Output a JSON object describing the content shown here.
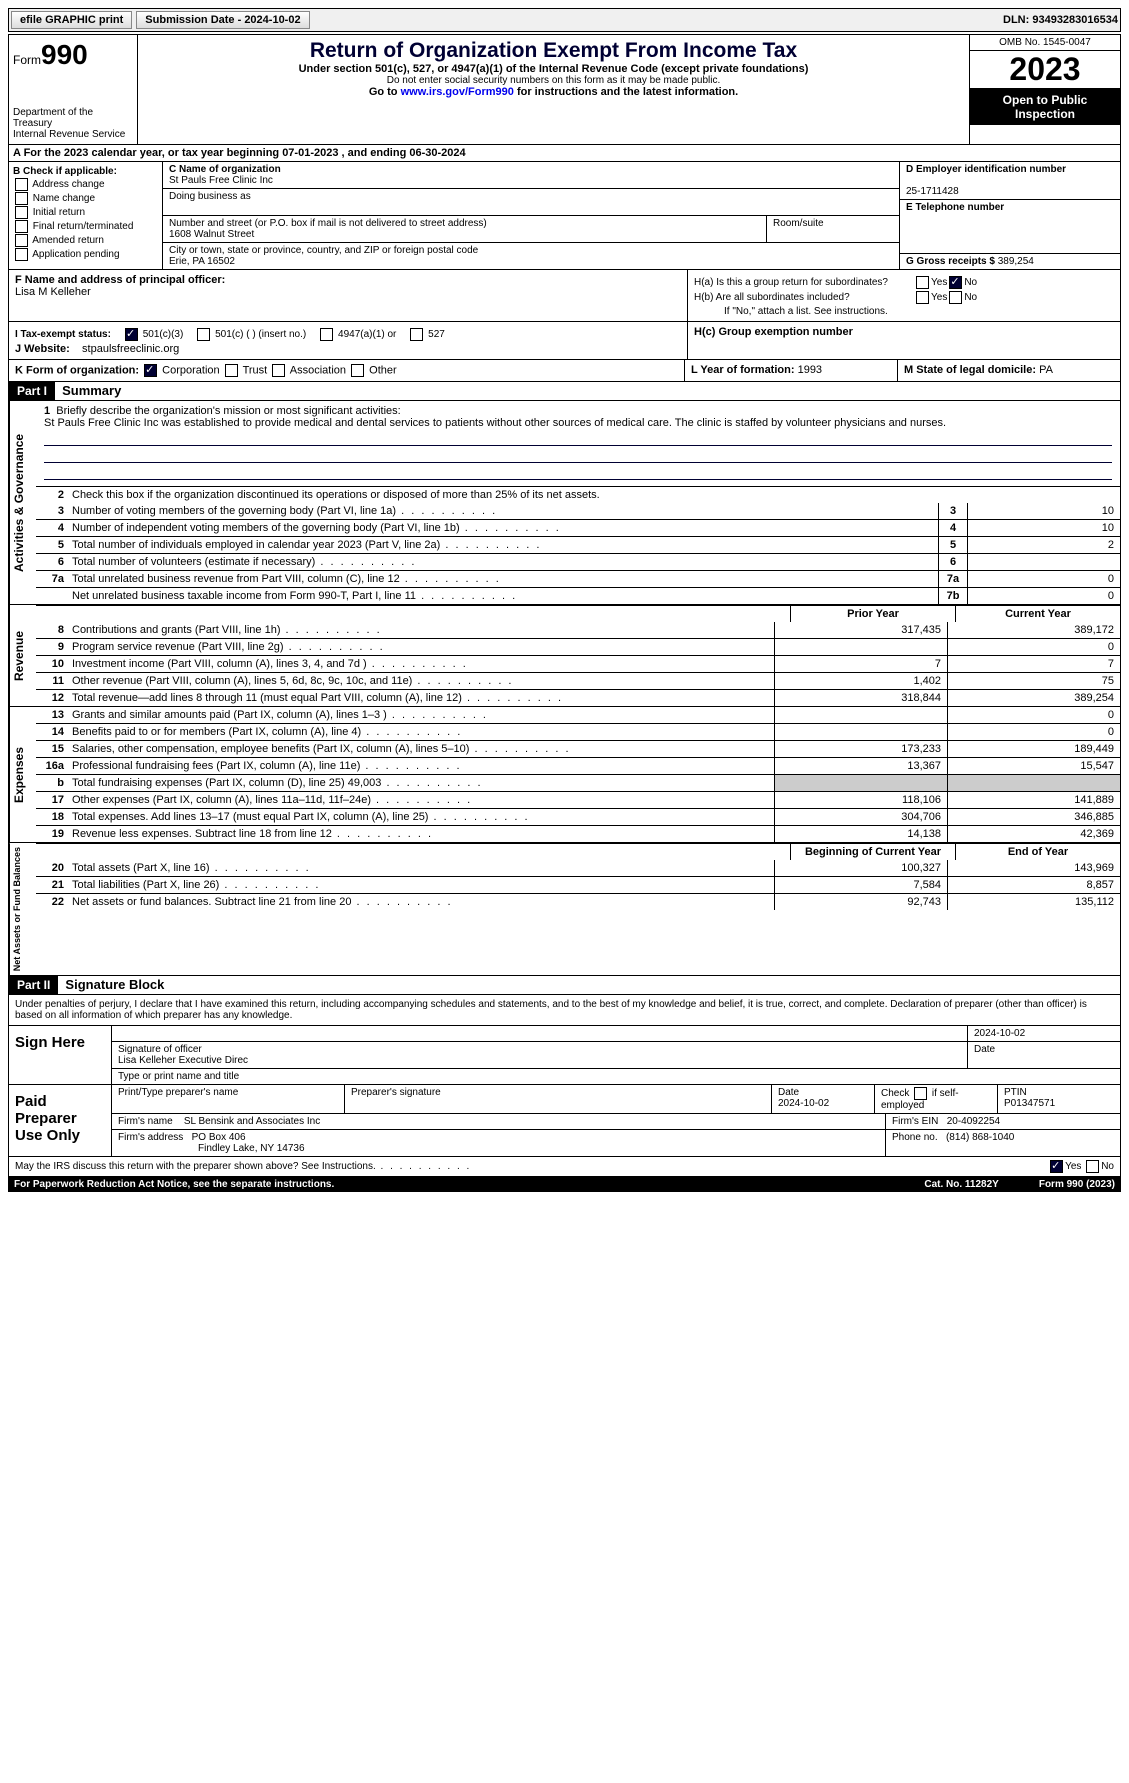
{
  "topbar": {
    "efile": "efile GRAPHIC print",
    "submission": "Submission Date - 2024-10-02",
    "dln": "DLN: 93493283016534"
  },
  "header": {
    "form_label": "Form",
    "form_number": "990",
    "dept": "Department of the Treasury",
    "irs": "Internal Revenue Service",
    "title": "Return of Organization Exempt From Income Tax",
    "sub1": "Under section 501(c), 527, or 4947(a)(1) of the Internal Revenue Code (except private foundations)",
    "sub2": "Do not enter social security numbers on this form as it may be made public.",
    "sub3": "Go to www.irs.gov/Form990 for instructions and the latest information.",
    "omb": "OMB No. 1545-0047",
    "year": "2023",
    "open": "Open to Public Inspection"
  },
  "row_a": "A  For the 2023 calendar year, or tax year beginning 07-01-2023   , and ending 06-30-2024",
  "section_b": {
    "label": "B Check if applicable:",
    "items": [
      "Address change",
      "Name change",
      "Initial return",
      "Final return/terminated",
      "Amended return",
      "Application pending"
    ]
  },
  "section_c": {
    "name_label": "C Name of organization",
    "name": "St Pauls Free Clinic Inc",
    "dba_label": "Doing business as",
    "dba": "",
    "street_label": "Number and street (or P.O. box if mail is not delivered to street address)",
    "street": "1608 Walnut Street",
    "room_label": "Room/suite",
    "city_label": "City or town, state or province, country, and ZIP or foreign postal code",
    "city": "Erie, PA  16502"
  },
  "section_d": {
    "ein_label": "D Employer identification number",
    "ein": "25-1711428",
    "phone_label": "E Telephone number",
    "phone": "",
    "gross_label": "G Gross receipts $",
    "gross": "389,254"
  },
  "section_f": {
    "label": "F  Name and address of principal officer:",
    "name": "Lisa M Kelleher"
  },
  "section_h": {
    "ha": "H(a)  Is this a group return for subordinates?",
    "hb": "H(b)  Are all subordinates included?",
    "hb_note": "If \"No,\" attach a list. See instructions.",
    "hc": "H(c)  Group exemption number",
    "yes": "Yes",
    "no": "No"
  },
  "row_i": {
    "label": "I   Tax-exempt status:",
    "opts": [
      "501(c)(3)",
      "501(c) (  ) (insert no.)",
      "4947(a)(1) or",
      "527"
    ]
  },
  "row_j": {
    "label": "J   Website:",
    "value": "stpaulsfreeclinic.org"
  },
  "row_k": {
    "label": "K Form of organization:",
    "opts": [
      "Corporation",
      "Trust",
      "Association",
      "Other"
    ]
  },
  "row_l": {
    "label": "L Year of formation:",
    "value": "1993"
  },
  "row_m": {
    "label": "M State of legal domicile:",
    "value": "PA"
  },
  "part1": {
    "header": "Part I",
    "title": "Summary",
    "line1_label": "Briefly describe the organization's mission or most significant activities:",
    "line1_text": "St Pauls Free Clinic Inc was established to provide medical and dental services to patients without other sources of medical care. The clinic is staffed by volunteer physicians and nurses.",
    "line2": "Check this box      if the organization discontinued its operations or disposed of more than 25% of its net assets.",
    "governance_lines": [
      {
        "n": "3",
        "d": "Number of voting members of the governing body (Part VI, line 1a)",
        "box": "3",
        "v": "10"
      },
      {
        "n": "4",
        "d": "Number of independent voting members of the governing body (Part VI, line 1b)",
        "box": "4",
        "v": "10"
      },
      {
        "n": "5",
        "d": "Total number of individuals employed in calendar year 2023 (Part V, line 2a)",
        "box": "5",
        "v": "2"
      },
      {
        "n": "6",
        "d": "Total number of volunteers (estimate if necessary)",
        "box": "6",
        "v": ""
      },
      {
        "n": "7a",
        "d": "Total unrelated business revenue from Part VIII, column (C), line 12",
        "box": "7a",
        "v": "0"
      },
      {
        "n": "",
        "d": "Net unrelated business taxable income from Form 990-T, Part I, line 11",
        "box": "7b",
        "v": "0"
      }
    ],
    "prior_year": "Prior Year",
    "current_year": "Current Year",
    "revenue_lines": [
      {
        "n": "8",
        "d": "Contributions and grants (Part VIII, line 1h)",
        "p": "317,435",
        "c": "389,172"
      },
      {
        "n": "9",
        "d": "Program service revenue (Part VIII, line 2g)",
        "p": "",
        "c": "0"
      },
      {
        "n": "10",
        "d": "Investment income (Part VIII, column (A), lines 3, 4, and 7d )",
        "p": "7",
        "c": "7"
      },
      {
        "n": "11",
        "d": "Other revenue (Part VIII, column (A), lines 5, 6d, 8c, 9c, 10c, and 11e)",
        "p": "1,402",
        "c": "75"
      },
      {
        "n": "12",
        "d": "Total revenue—add lines 8 through 11 (must equal Part VIII, column (A), line 12)",
        "p": "318,844",
        "c": "389,254"
      }
    ],
    "expense_lines": [
      {
        "n": "13",
        "d": "Grants and similar amounts paid (Part IX, column (A), lines 1–3 )",
        "p": "",
        "c": "0"
      },
      {
        "n": "14",
        "d": "Benefits paid to or for members (Part IX, column (A), line 4)",
        "p": "",
        "c": "0"
      },
      {
        "n": "15",
        "d": "Salaries, other compensation, employee benefits (Part IX, column (A), lines 5–10)",
        "p": "173,233",
        "c": "189,449"
      },
      {
        "n": "16a",
        "d": "Professional fundraising fees (Part IX, column (A), line 11e)",
        "p": "13,367",
        "c": "15,547"
      },
      {
        "n": "b",
        "d": "Total fundraising expenses (Part IX, column (D), line 25) 49,003",
        "p": "GREY",
        "c": "GREY"
      },
      {
        "n": "17",
        "d": "Other expenses (Part IX, column (A), lines 11a–11d, 11f–24e)",
        "p": "118,106",
        "c": "141,889"
      },
      {
        "n": "18",
        "d": "Total expenses. Add lines 13–17 (must equal Part IX, column (A), line 25)",
        "p": "304,706",
        "c": "346,885"
      },
      {
        "n": "19",
        "d": "Revenue less expenses. Subtract line 18 from line 12",
        "p": "14,138",
        "c": "42,369"
      }
    ],
    "beg_year": "Beginning of Current Year",
    "end_year": "End of Year",
    "net_lines": [
      {
        "n": "20",
        "d": "Total assets (Part X, line 16)",
        "p": "100,327",
        "c": "143,969"
      },
      {
        "n": "21",
        "d": "Total liabilities (Part X, line 26)",
        "p": "7,584",
        "c": "8,857"
      },
      {
        "n": "22",
        "d": "Net assets or fund balances. Subtract line 21 from line 20",
        "p": "92,743",
        "c": "135,112"
      }
    ],
    "tab_gov": "Activities & Governance",
    "tab_rev": "Revenue",
    "tab_exp": "Expenses",
    "tab_net": "Net Assets or Fund Balances"
  },
  "part2": {
    "header": "Part II",
    "title": "Signature Block",
    "declare": "Under penalties of perjury, I declare that I have examined this return, including accompanying schedules and statements, and to the best of my knowledge and belief, it is true, correct, and complete. Declaration of preparer (other than officer) is based on all information of which preparer has any knowledge.",
    "sign_here": "Sign Here",
    "sig_officer": "Signature of officer",
    "sig_name": "Lisa Kelleher  Executive Direc",
    "sig_type": "Type or print name and title",
    "sig_date_label": "Date",
    "sig_date": "2024-10-02",
    "paid": "Paid Preparer Use Only",
    "prep_name_label": "Print/Type preparer's name",
    "prep_sig_label": "Preparer's signature",
    "prep_date": "2024-10-02",
    "prep_check": "Check      if self-employed",
    "ptin_label": "PTIN",
    "ptin": "P01347571",
    "firm_name_label": "Firm's name",
    "firm_name": "SL Bensink and Associates Inc",
    "firm_ein_label": "Firm's EIN",
    "firm_ein": "20-4092254",
    "firm_addr_label": "Firm's address",
    "firm_addr1": "PO Box 406",
    "firm_addr2": "Findley Lake, NY  14736",
    "firm_phone_label": "Phone no.",
    "firm_phone": "(814) 868-1040",
    "discuss": "May the IRS discuss this return with the preparer shown above? See Instructions."
  },
  "footer": {
    "paperwork": "For Paperwork Reduction Act Notice, see the separate instructions.",
    "cat": "Cat. No. 11282Y",
    "form": "Form 990 (2023)"
  }
}
